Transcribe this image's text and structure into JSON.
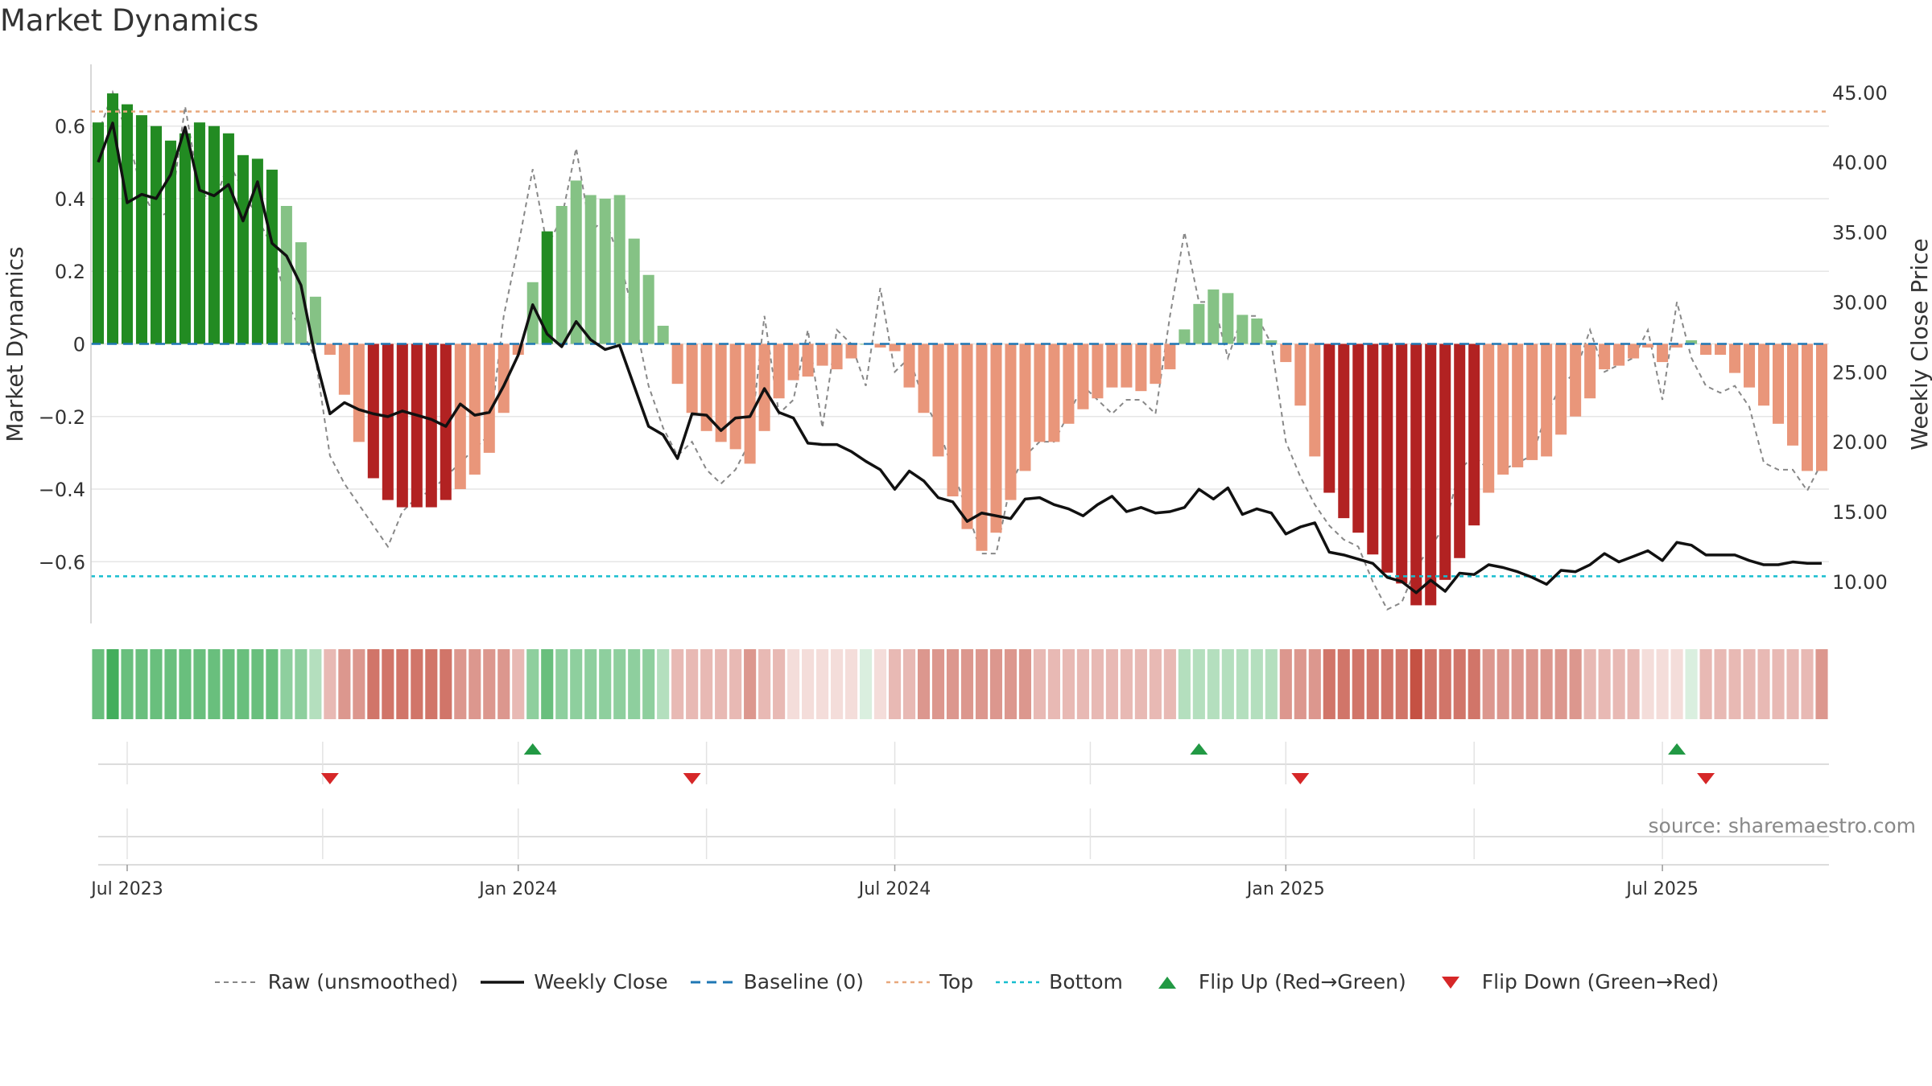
{
  "chart_data": {
    "type": "bar",
    "title": "Market Dynamics",
    "ylabel_left": "Market Dynamics",
    "ylabel_right": "Weekly Close Price",
    "ylim_left": [
      -0.77,
      0.77
    ],
    "ylim_right": [
      7.0,
      47.0
    ],
    "left_ticks": [
      0.6,
      0.4,
      0.2,
      0,
      -0.2,
      -0.4,
      -0.6
    ],
    "left_tick_labels": [
      "0.6",
      "0.4",
      "0.2",
      "0",
      "−0.2",
      "−0.4",
      "−0.6"
    ],
    "right_ticks": [
      45,
      40,
      35,
      30,
      25,
      20,
      15,
      10
    ],
    "right_tick_labels": [
      "45.00",
      "40.00",
      "35.00",
      "30.00",
      "25.00",
      "20.00",
      "15.00",
      "10.00"
    ],
    "x_ticks": [
      {
        "label": "Jul 2023",
        "week": 2
      },
      {
        "label": "Jan 2024",
        "week": 29
      },
      {
        "label": "Jul 2024",
        "week": 55
      },
      {
        "label": "Jan 2025",
        "week": 82
      },
      {
        "label": "Jul 2025",
        "week": 108
      }
    ],
    "reference_lines": {
      "baseline": 0,
      "top": 0.64,
      "bottom": -0.64
    },
    "dynamics": [
      0.61,
      0.69,
      0.66,
      0.63,
      0.6,
      0.56,
      0.58,
      0.61,
      0.6,
      0.58,
      0.52,
      0.51,
      0.48,
      0.38,
      0.28,
      0.13,
      -0.03,
      -0.14,
      -0.27,
      -0.37,
      -0.43,
      -0.45,
      -0.45,
      -0.45,
      -0.43,
      -0.4,
      -0.36,
      -0.3,
      -0.19,
      -0.03,
      0.17,
      0.31,
      0.38,
      0.45,
      0.41,
      0.4,
      0.41,
      0.29,
      0.19,
      0.05,
      -0.11,
      -0.19,
      -0.24,
      -0.27,
      -0.29,
      -0.33,
      -0.24,
      -0.15,
      -0.1,
      -0.09,
      -0.06,
      -0.07,
      -0.04,
      0.0,
      -0.01,
      -0.02,
      -0.12,
      -0.19,
      -0.31,
      -0.42,
      -0.51,
      -0.57,
      -0.52,
      -0.43,
      -0.35,
      -0.27,
      -0.27,
      -0.22,
      -0.18,
      -0.15,
      -0.12,
      -0.12,
      -0.13,
      -0.11,
      -0.07,
      0.04,
      0.11,
      0.15,
      0.14,
      0.08,
      0.07,
      0.01,
      -0.05,
      -0.17,
      -0.31,
      -0.41,
      -0.48,
      -0.52,
      -0.58,
      -0.63,
      -0.66,
      -0.72,
      -0.72,
      -0.65,
      -0.59,
      -0.5,
      -0.41,
      -0.36,
      -0.34,
      -0.32,
      -0.31,
      -0.25,
      -0.2,
      -0.15,
      -0.07,
      -0.06,
      -0.04,
      -0.01,
      -0.05,
      -0.01,
      0.01,
      -0.03,
      -0.03,
      -0.08,
      -0.12,
      -0.17,
      -0.22,
      -0.28,
      -0.35,
      -0.35
    ],
    "strength": [
      3,
      4,
      3,
      3,
      3,
      3,
      3,
      3,
      3,
      3,
      3,
      3,
      3,
      2,
      2,
      1,
      1,
      2,
      2,
      3,
      3,
      3,
      3,
      3,
      3,
      2,
      2,
      2,
      2,
      1,
      2,
      3,
      2,
      2,
      2,
      2,
      2,
      2,
      2,
      1,
      1,
      1,
      1,
      1,
      1,
      2,
      1,
      1,
      0,
      0,
      0,
      0,
      0,
      0,
      0,
      1,
      1,
      2,
      2,
      2,
      2,
      2,
      2,
      2,
      2,
      1,
      1,
      1,
      1,
      1,
      1,
      1,
      1,
      1,
      1,
      1,
      1,
      1,
      1,
      1,
      1,
      1,
      2,
      2,
      2,
      3,
      3,
      3,
      3,
      3,
      3,
      4,
      3,
      3,
      3,
      3,
      2,
      2,
      2,
      2,
      2,
      2,
      2,
      1,
      1,
      1,
      1,
      0,
      0,
      0,
      0,
      1,
      1,
      1,
      1,
      1,
      1,
      1,
      1,
      2,
      2,
      2
    ],
    "weekly_close": [
      40.0,
      42.8,
      37.1,
      37.7,
      37.4,
      39.1,
      42.5,
      38.0,
      37.6,
      38.4,
      35.8,
      38.6,
      34.2,
      33.3,
      31.2,
      26.0,
      22.0,
      22.8,
      22.3,
      22.0,
      21.8,
      22.2,
      21.9,
      21.6,
      21.1,
      22.7,
      21.9,
      22.1,
      24.0,
      26.2,
      29.8,
      27.7,
      26.8,
      28.6,
      27.3,
      26.6,
      26.9,
      24.0,
      21.1,
      20.5,
      18.8,
      22.0,
      21.9,
      20.8,
      21.7,
      21.8,
      23.8,
      22.1,
      21.7,
      19.9,
      19.8,
      19.8,
      19.3,
      18.6,
      18.0,
      16.6,
      17.9,
      17.2,
      16.0,
      15.7,
      14.3,
      14.9,
      14.7,
      14.5,
      15.9,
      16.0,
      15.5,
      15.2,
      14.7,
      15.5,
      16.1,
      15.0,
      15.3,
      14.9,
      15.0,
      15.3,
      16.6,
      15.9,
      16.7,
      14.8,
      15.2,
      14.9,
      13.4,
      13.9,
      14.2,
      12.1,
      11.9,
      11.6,
      11.3,
      10.3,
      10.0,
      9.2,
      10.1,
      9.3,
      10.6,
      10.5,
      11.2,
      11.0,
      10.7,
      10.3,
      9.8,
      10.8,
      10.7,
      11.2,
      12.0,
      11.4,
      11.8,
      12.2,
      11.5,
      12.8,
      12.6,
      11.9,
      11.9,
      11.9,
      11.5,
      11.2,
      11.2,
      11.4,
      11.3,
      11.3
    ],
    "raw": [
      42.0,
      45.0,
      42.0,
      38.0,
      36.0,
      36.5,
      44.0,
      38.0,
      37.0,
      40.0,
      38.0,
      36.0,
      34.0,
      30.0,
      28.0,
      26.0,
      19.0,
      17.0,
      15.5,
      14.0,
      12.5,
      15.0,
      16.0,
      16.5,
      17.5,
      18.5,
      19.5,
      20.5,
      29.0,
      34.0,
      39.5,
      34.0,
      36.0,
      41.0,
      35.0,
      36.0,
      33.0,
      29.0,
      24.0,
      21.0,
      19.0,
      20.0,
      18.0,
      17.0,
      18.0,
      20.0,
      29.0,
      22.0,
      23.0,
      28.0,
      21.0,
      28.0,
      27.0,
      24.0,
      31.0,
      25.0,
      26.0,
      23.0,
      21.0,
      18.0,
      15.0,
      12.0,
      12.0,
      17.0,
      19.0,
      20.0,
      20.0,
      22.0,
      24.0,
      23.0,
      22.0,
      23.0,
      23.0,
      22.0,
      29.0,
      35.0,
      30.0,
      30.0,
      26.0,
      29.0,
      29.0,
      27.0,
      20.0,
      17.5,
      15.5,
      14.0,
      13.0,
      12.5,
      10.0,
      8.0,
      8.5,
      11.0,
      12.5,
      14.0,
      18.0,
      19.0,
      18.0,
      18.0,
      18.5,
      19.0,
      22.0,
      24.0,
      25.0,
      28.0,
      25.0,
      25.5,
      26.0,
      28.0,
      23.0,
      30.0,
      26.0,
      24.0,
      23.5,
      24.0,
      22.5,
      18.5,
      18.0,
      18.0,
      16.5,
      18.5
    ],
    "flip_up_weeks": [
      30,
      76,
      109
    ],
    "flip_down_weeks": [
      16,
      41,
      83,
      111
    ],
    "legend": [
      {
        "key": "raw",
        "label": "Raw (unsmoothed)"
      },
      {
        "key": "close",
        "label": "Weekly Close"
      },
      {
        "key": "baseline",
        "label": "Baseline (0)"
      },
      {
        "key": "top",
        "label": "Top"
      },
      {
        "key": "bottom",
        "label": "Bottom"
      },
      {
        "key": "flipup",
        "label": "Flip Up (Red→Green)"
      },
      {
        "key": "flipdown",
        "label": "Flip Down (Green→Red)"
      }
    ],
    "grid": true,
    "legend_position": "bottom-center"
  },
  "colors": {
    "green_strong": "#228b22",
    "green_light": "#85c285",
    "red_strong": "#b22222",
    "red_light": "#e9967a",
    "close_line": "#111111",
    "raw_line": "#888888",
    "baseline": "#1f77b4",
    "top_line": "#e8a87c",
    "bottom_line": "#17becf",
    "flip_up": "#229944",
    "flip_down": "#d62728",
    "grid": "#e6e6e6"
  },
  "source": "source: sharemaestro.com"
}
